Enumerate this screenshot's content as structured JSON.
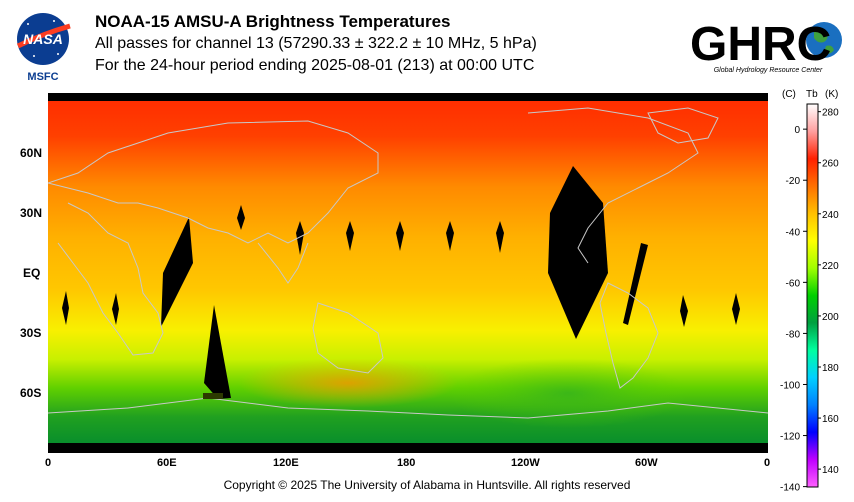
{
  "header": {
    "title": "NOAA-15 AMSU-A Brightness Temperatures",
    "line2": "All passes for channel 13 (57290.33 ± 322.2 ± 10 MHz, 5 hPa)",
    "line3": "For the 24-hour period ending 2025-08-01 (213) at 00:00 UTC"
  },
  "logos": {
    "nasa_text": "NASA",
    "msfc_text": "MSFC",
    "ghrc_text": "GHRC",
    "ghrc_sub": "Global Hydrology Resource Center"
  },
  "map": {
    "lat_ticks": [
      "60N",
      "30N",
      "EQ",
      "30S",
      "60S"
    ],
    "lon_ticks": [
      "0",
      "60E",
      "120E",
      "180",
      "120W",
      "60W",
      "0"
    ]
  },
  "colorbar": {
    "unit_c": "(C)",
    "unit_tb": "Tb",
    "unit_k": "(K)",
    "c_ticks": [
      "0",
      "-20",
      "-40",
      "-60",
      "-80",
      "-100",
      "-120",
      "-140"
    ],
    "k_ticks": [
      "280",
      "260",
      "240",
      "220",
      "200",
      "180",
      "160",
      "140"
    ],
    "k_min": 133,
    "k_max": 283,
    "colors": [
      "#ff60ff",
      "#c000ff",
      "#0000ff",
      "#0080ff",
      "#00d0ff",
      "#00ffa0",
      "#00a040",
      "#00d000",
      "#a0ff00",
      "#ffff00",
      "#ffc000",
      "#ff7000",
      "#ff2000",
      "#ffa0a0",
      "#ffffff"
    ]
  },
  "footer": {
    "copyright": "Copyright © 2025 The University of Alabama in Huntsville.  All rights reserved"
  },
  "theme": {
    "land_outline": "#c8c8c8",
    "nodata": "#000000"
  }
}
